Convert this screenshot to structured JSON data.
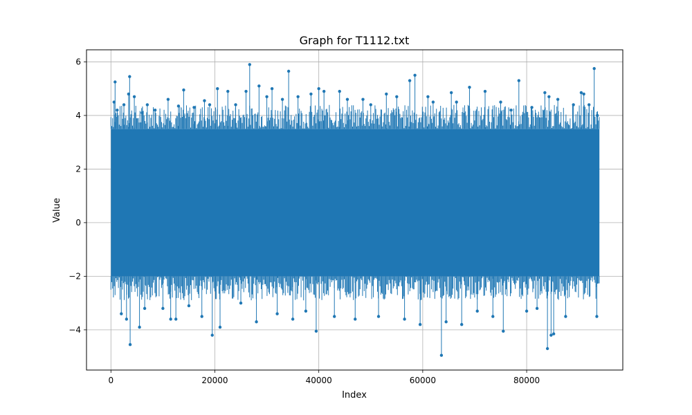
{
  "chart_data": {
    "type": "line",
    "title": "Graph for T1112.txt",
    "xlabel": "Index",
    "ylabel": "Value",
    "xlim": [
      -4700,
      98500
    ],
    "ylim": [
      -5.5,
      6.45
    ],
    "xticks": [
      0,
      20000,
      40000,
      60000,
      80000
    ],
    "xtick_labels": [
      "0",
      "20000",
      "40000",
      "60000",
      "80000"
    ],
    "yticks": [
      -4,
      -2,
      0,
      2,
      4,
      6
    ],
    "ytick_labels": [
      "−4",
      "−2",
      "0",
      "2",
      "4",
      "6"
    ],
    "grid": true,
    "color": "#1f77b4",
    "n_points": 94000,
    "x_range": [
      0,
      94000
    ],
    "band": {
      "low": -2.0,
      "high": 3.5
    },
    "series": [
      {
        "marker": "circle",
        "outliers": [
          {
            "x": 600,
            "y": 4.5
          },
          {
            "x": 800,
            "y": 5.25
          },
          {
            "x": 1200,
            "y": 4.2
          },
          {
            "x": 2000,
            "y": -3.4
          },
          {
            "x": 2500,
            "y": 4.4
          },
          {
            "x": 3000,
            "y": -3.6
          },
          {
            "x": 3400,
            "y": 4.8
          },
          {
            "x": 3600,
            "y": 5.45
          },
          {
            "x": 3700,
            "y": -4.55
          },
          {
            "x": 4500,
            "y": 4.7
          },
          {
            "x": 5500,
            "y": -3.9
          },
          {
            "x": 6000,
            "y": 4.1
          },
          {
            "x": 6500,
            "y": -3.2
          },
          {
            "x": 7000,
            "y": 4.4
          },
          {
            "x": 8500,
            "y": 4.2
          },
          {
            "x": 10000,
            "y": -3.2
          },
          {
            "x": 11000,
            "y": 4.6
          },
          {
            "x": 11500,
            "y": -3.6
          },
          {
            "x": 12500,
            "y": -3.6
          },
          {
            "x": 13000,
            "y": 4.35
          },
          {
            "x": 14000,
            "y": 4.95
          },
          {
            "x": 15000,
            "y": -3.1
          },
          {
            "x": 16000,
            "y": 4.3
          },
          {
            "x": 17500,
            "y": -3.5
          },
          {
            "x": 18000,
            "y": 4.55
          },
          {
            "x": 19000,
            "y": 4.4
          },
          {
            "x": 19500,
            "y": -4.2
          },
          {
            "x": 20500,
            "y": 5.0
          },
          {
            "x": 21000,
            "y": -3.9
          },
          {
            "x": 22500,
            "y": 4.9
          },
          {
            "x": 24000,
            "y": 4.4
          },
          {
            "x": 25000,
            "y": -3.0
          },
          {
            "x": 26000,
            "y": 4.9
          },
          {
            "x": 26700,
            "y": 5.9
          },
          {
            "x": 28000,
            "y": -3.7
          },
          {
            "x": 28500,
            "y": 5.1
          },
          {
            "x": 30000,
            "y": 4.7
          },
          {
            "x": 31000,
            "y": 5.0
          },
          {
            "x": 32000,
            "y": -3.4
          },
          {
            "x": 33000,
            "y": 4.6
          },
          {
            "x": 34200,
            "y": 5.65
          },
          {
            "x": 35000,
            "y": -3.6
          },
          {
            "x": 36000,
            "y": 4.7
          },
          {
            "x": 37500,
            "y": -3.3
          },
          {
            "x": 38500,
            "y": 4.8
          },
          {
            "x": 39500,
            "y": -4.05
          },
          {
            "x": 40000,
            "y": 5.0
          },
          {
            "x": 41000,
            "y": 4.9
          },
          {
            "x": 43000,
            "y": -3.5
          },
          {
            "x": 44000,
            "y": 4.9
          },
          {
            "x": 45500,
            "y": 4.6
          },
          {
            "x": 47000,
            "y": -3.6
          },
          {
            "x": 48500,
            "y": 4.6
          },
          {
            "x": 50000,
            "y": 4.4
          },
          {
            "x": 51500,
            "y": -3.5
          },
          {
            "x": 53000,
            "y": 4.8
          },
          {
            "x": 55000,
            "y": 4.7
          },
          {
            "x": 56500,
            "y": -3.6
          },
          {
            "x": 57500,
            "y": 5.3
          },
          {
            "x": 58500,
            "y": 5.5
          },
          {
            "x": 59500,
            "y": -3.8
          },
          {
            "x": 61000,
            "y": 4.7
          },
          {
            "x": 62000,
            "y": 4.5
          },
          {
            "x": 63600,
            "y": -4.95
          },
          {
            "x": 64500,
            "y": -3.7
          },
          {
            "x": 65500,
            "y": 4.85
          },
          {
            "x": 66500,
            "y": 4.5
          },
          {
            "x": 67500,
            "y": -3.8
          },
          {
            "x": 69000,
            "y": 5.05
          },
          {
            "x": 70500,
            "y": -3.3
          },
          {
            "x": 72000,
            "y": 4.9
          },
          {
            "x": 73500,
            "y": -3.5
          },
          {
            "x": 75000,
            "y": 4.5
          },
          {
            "x": 75500,
            "y": -4.05
          },
          {
            "x": 77000,
            "y": 4.2
          },
          {
            "x": 78500,
            "y": 5.3
          },
          {
            "x": 80000,
            "y": -3.3
          },
          {
            "x": 81000,
            "y": 4.3
          },
          {
            "x": 82000,
            "y": -3.2
          },
          {
            "x": 83500,
            "y": 4.85
          },
          {
            "x": 84000,
            "y": -4.7
          },
          {
            "x": 84300,
            "y": 4.7
          },
          {
            "x": 84700,
            "y": -4.2
          },
          {
            "x": 85200,
            "y": -4.15
          },
          {
            "x": 86000,
            "y": 4.6
          },
          {
            "x": 87500,
            "y": -3.5
          },
          {
            "x": 89000,
            "y": 4.4
          },
          {
            "x": 90500,
            "y": 4.85
          },
          {
            "x": 91000,
            "y": 4.8
          },
          {
            "x": 92000,
            "y": 4.4
          },
          {
            "x": 93000,
            "y": 5.75
          },
          {
            "x": 93500,
            "y": -3.5
          },
          {
            "x": 93600,
            "y": 4.0
          }
        ]
      }
    ]
  }
}
